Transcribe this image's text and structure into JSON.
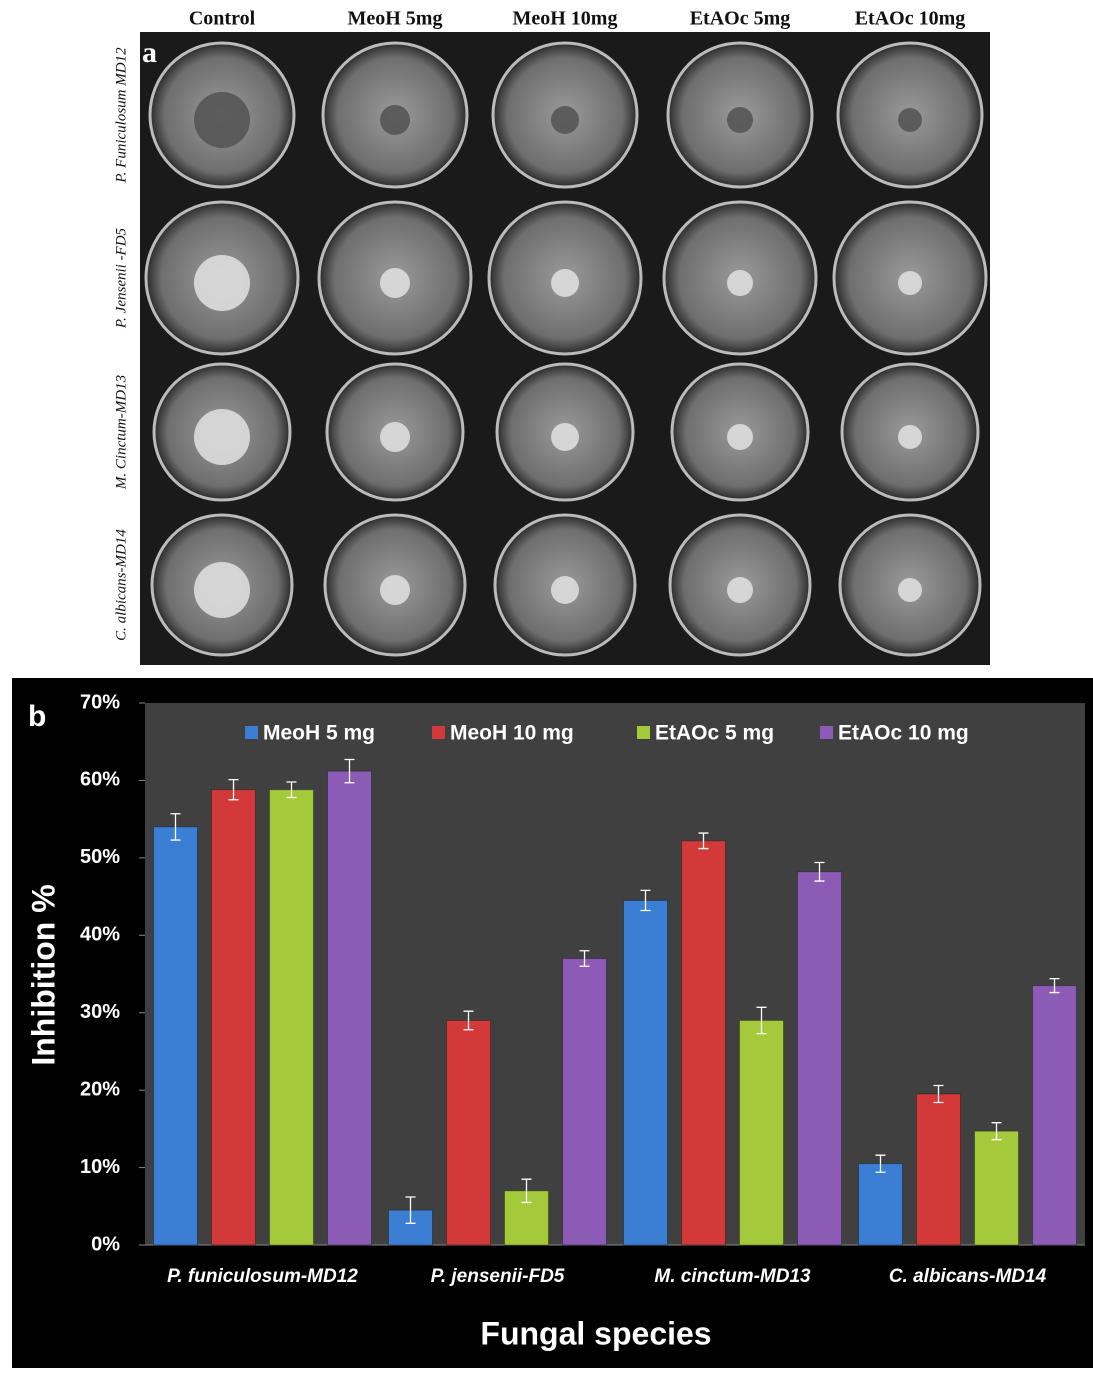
{
  "panel_a": {
    "label": "a",
    "columns": [
      "Control",
      "MeoH 5mg",
      "MeoH 10mg",
      "EtAOc 5mg",
      "EtAOc 10mg"
    ],
    "rows": [
      "P. Funiculosum MD12",
      "P. Jensenii -FD5",
      "M. Cinctum-MD13",
      "C. albicans-MD14"
    ]
  },
  "chart_data": {
    "type": "bar",
    "panel_label": "b",
    "ylabel": "Inhibition %",
    "xlabel": "Fungal species",
    "categories": [
      "P. funiculosum-MD12",
      "P. jensenii-FD5",
      "M. cinctum-MD13",
      "C. albicans-MD14"
    ],
    "series": [
      {
        "name": "MeoH 5 mg",
        "color": "#3b7fd4",
        "values": [
          54,
          4.5,
          44.5,
          10.5
        ],
        "errors": [
          1.7,
          1.7,
          1.3,
          1.1
        ]
      },
      {
        "name": "MeoH 10 mg",
        "color": "#d23a3a",
        "values": [
          58.8,
          29,
          52.2,
          19.5
        ],
        "errors": [
          1.3,
          1.2,
          1,
          1.1
        ]
      },
      {
        "name": "EtAOc 5 mg",
        "color": "#a4c93b",
        "values": [
          58.8,
          7,
          29,
          14.7
        ],
        "errors": [
          1,
          1.5,
          1.7,
          1.1
        ]
      },
      {
        "name": "EtAOc 10 mg",
        "color": "#8c5bb5",
        "values": [
          61.2,
          37,
          48.2,
          33.5
        ],
        "errors": [
          1.5,
          1,
          1.2,
          0.9
        ]
      }
    ],
    "ylim": [
      0,
      70
    ],
    "yticks": [
      {
        "value": 0,
        "label": "0%"
      },
      {
        "value": 10,
        "label": "10%"
      },
      {
        "value": 20,
        "label": "20%"
      },
      {
        "value": 30,
        "label": "30%"
      },
      {
        "value": 40,
        "label": "40%"
      },
      {
        "value": 50,
        "label": "50%"
      },
      {
        "value": 60,
        "label": "60%"
      },
      {
        "value": 70,
        "label": "70%"
      }
    ],
    "legend": "top"
  }
}
